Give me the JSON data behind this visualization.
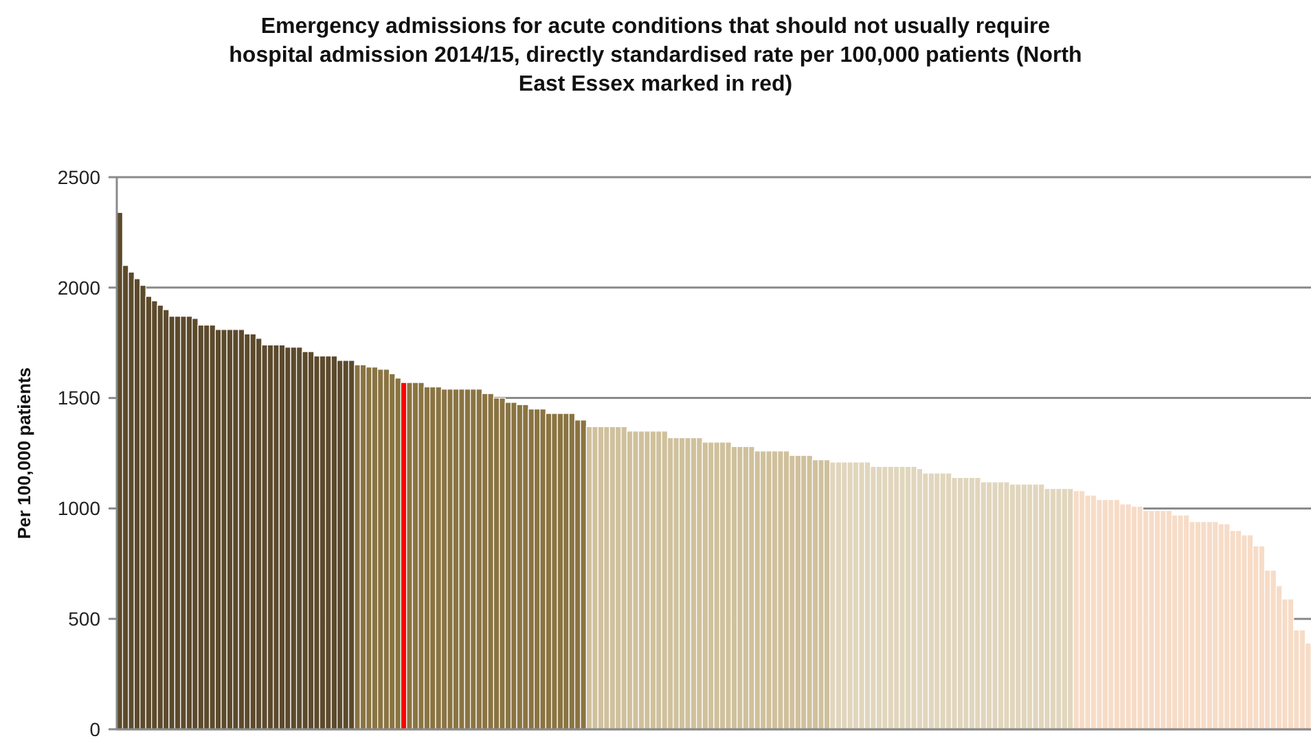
{
  "chart_data": {
    "type": "bar",
    "title": "Emergency admissions  for acute conditions that should not usually require\nhospital admission  2014/15,  directly  standardised  rate per 100,000  patients (North\nEast Essex  marked  in red)",
    "ylabel": "Per 100,000 patients",
    "categories": [
      null,
      null,
      null,
      null,
      null,
      null,
      null,
      null,
      null,
      null,
      null,
      null,
      null,
      null,
      null,
      null,
      null,
      null,
      null,
      null,
      null,
      null,
      null,
      null,
      null,
      null,
      null,
      null,
      null,
      null,
      null,
      null,
      null,
      null,
      null,
      null,
      null,
      null,
      null,
      null,
      null,
      null,
      null,
      null,
      null,
      null,
      null,
      null,
      null,
      null,
      null,
      null,
      null,
      null,
      null,
      null,
      null,
      null,
      null,
      null,
      null,
      null,
      null,
      null,
      null,
      null,
      null,
      null,
      null,
      null,
      null,
      null,
      null,
      null,
      null,
      null,
      null,
      null,
      null,
      null,
      null,
      null,
      null,
      null,
      null,
      null,
      null,
      null,
      null,
      null,
      null,
      null,
      null,
      null,
      null,
      null,
      null,
      null,
      null,
      null,
      null,
      null,
      null,
      null,
      null,
      null,
      null,
      null,
      null,
      null,
      null,
      null,
      null,
      null,
      null,
      null,
      null,
      null,
      null,
      null,
      null,
      null,
      null,
      null,
      null,
      null,
      null,
      null,
      null,
      null,
      null,
      null,
      null,
      null,
      null,
      null,
      null,
      null,
      null,
      null,
      null,
      null,
      null,
      null,
      null,
      null,
      null,
      null,
      null,
      null,
      null,
      null,
      null,
      null,
      null,
      null,
      null,
      null,
      null,
      null,
      null,
      null,
      null,
      null,
      null,
      null,
      null,
      null,
      null,
      null,
      null,
      null,
      null,
      null,
      null,
      null,
      null,
      null,
      null,
      null,
      null,
      null,
      null,
      null,
      null,
      null,
      null,
      null,
      null,
      null,
      null,
      null,
      null,
      null,
      null,
      null,
      null,
      null,
      null,
      null,
      null,
      null,
      null,
      null,
      null,
      null
    ],
    "values": [
      2340,
      2100,
      2070,
      2040,
      2010,
      1960,
      1940,
      1920,
      1900,
      1870,
      1870,
      1870,
      1870,
      1860,
      1830,
      1830,
      1830,
      1810,
      1810,
      1810,
      1810,
      1810,
      1790,
      1790,
      1770,
      1740,
      1740,
      1740,
      1740,
      1730,
      1730,
      1730,
      1710,
      1710,
      1690,
      1690,
      1690,
      1690,
      1670,
      1670,
      1670,
      1650,
      1650,
      1640,
      1640,
      1630,
      1630,
      1610,
      1590,
      1570,
      1570,
      1570,
      1570,
      1550,
      1550,
      1550,
      1540,
      1540,
      1540,
      1540,
      1540,
      1540,
      1540,
      1520,
      1520,
      1500,
      1500,
      1480,
      1480,
      1470,
      1470,
      1450,
      1450,
      1450,
      1430,
      1430,
      1430,
      1430,
      1430,
      1400,
      1400,
      1370,
      1370,
      1370,
      1370,
      1370,
      1370,
      1370,
      1350,
      1350,
      1350,
      1350,
      1350,
      1350,
      1350,
      1320,
      1320,
      1320,
      1320,
      1320,
      1320,
      1300,
      1300,
      1300,
      1300,
      1300,
      1280,
      1280,
      1280,
      1280,
      1260,
      1260,
      1260,
      1260,
      1260,
      1260,
      1240,
      1240,
      1240,
      1240,
      1220,
      1220,
      1220,
      1210,
      1210,
      1210,
      1210,
      1210,
      1210,
      1210,
      1190,
      1190,
      1190,
      1190,
      1190,
      1190,
      1190,
      1190,
      1180,
      1160,
      1160,
      1160,
      1160,
      1160,
      1140,
      1140,
      1140,
      1140,
      1140,
      1120,
      1120,
      1120,
      1120,
      1120,
      1110,
      1110,
      1110,
      1110,
      1110,
      1110,
      1090,
      1090,
      1090,
      1090,
      1090,
      1080,
      1080,
      1060,
      1060,
      1040,
      1040,
      1040,
      1040,
      1020,
      1020,
      1010,
      1010,
      990,
      990,
      990,
      990,
      990,
      970,
      970,
      970,
      940,
      940,
      940,
      940,
      940,
      930,
      930,
      900,
      900,
      880,
      880,
      830,
      830,
      720,
      720,
      650,
      590,
      590,
      450,
      450,
      390
    ],
    "colors": [
      "#5c4a2c",
      "#5c4a2c",
      "#5c4a2c",
      "#5c4a2c",
      "#5c4a2c",
      "#5c4a2c",
      "#5c4a2c",
      "#5c4a2c",
      "#5c4a2c",
      "#5c4a2c",
      "#5c4a2c",
      "#5c4a2c",
      "#5c4a2c",
      "#5c4a2c",
      "#5c4a2c",
      "#5c4a2c",
      "#5c4a2c",
      "#5c4a2c",
      "#5c4a2c",
      "#5c4a2c",
      "#5c4a2c",
      "#5c4a2c",
      "#5c4a2c",
      "#5c4a2c",
      "#5c4a2c",
      "#5c4a2c",
      "#5c4a2c",
      "#5c4a2c",
      "#5c4a2c",
      "#5c4a2c",
      "#5c4a2c",
      "#5c4a2c",
      "#5c4a2c",
      "#5c4a2c",
      "#5c4a2c",
      "#5c4a2c",
      "#5c4a2c",
      "#5c4a2c",
      "#5c4a2c",
      "#5c4a2c",
      "#5c4a2c",
      "#8a7442",
      "#8a7442",
      "#8a7442",
      "#8a7442",
      "#8a7442",
      "#8a7442",
      "#8a7442",
      "#8a7442",
      "#ff0000",
      "#8a7442",
      "#8a7442",
      "#8a7442",
      "#8a7442",
      "#8a7442",
      "#8a7442",
      "#8a7442",
      "#8a7442",
      "#8a7442",
      "#8a7442",
      "#8a7442",
      "#8a7442",
      "#8a7442",
      "#8a7442",
      "#8a7442",
      "#8a7442",
      "#8a7442",
      "#8a7442",
      "#8a7442",
      "#8a7442",
      "#8a7442",
      "#8a7442",
      "#8a7442",
      "#8a7442",
      "#8a7442",
      "#8a7442",
      "#8a7442",
      "#8a7442",
      "#8a7442",
      "#8a7442",
      "#8a7442",
      "#d0c19d",
      "#d0c19d",
      "#d0c19d",
      "#d0c19d",
      "#d0c19d",
      "#d0c19d",
      "#d0c19d",
      "#d0c19d",
      "#d0c19d",
      "#d0c19d",
      "#d0c19d",
      "#d0c19d",
      "#d0c19d",
      "#d0c19d",
      "#d0c19d",
      "#d0c19d",
      "#d0c19d",
      "#d0c19d",
      "#d0c19d",
      "#d0c19d",
      "#d0c19d",
      "#d0c19d",
      "#d0c19d",
      "#d0c19d",
      "#d0c19d",
      "#d0c19d",
      "#d0c19d",
      "#d0c19d",
      "#d0c19d",
      "#d0c19d",
      "#d0c19d",
      "#d0c19d",
      "#d0c19d",
      "#d0c19d",
      "#d0c19d",
      "#d0c19d",
      "#d0c19d",
      "#d0c19d",
      "#d0c19d",
      "#d0c19d",
      "#d0c19d",
      "#d0c19d",
      "#e1d6bd",
      "#e1d6bd",
      "#e1d6bd",
      "#e1d6bd",
      "#e1d6bd",
      "#e1d6bd",
      "#e1d6bd",
      "#e1d6bd",
      "#e1d6bd",
      "#e1d6bd",
      "#e1d6bd",
      "#e1d6bd",
      "#e1d6bd",
      "#e1d6bd",
      "#e1d6bd",
      "#e1d6bd",
      "#e1d6bd",
      "#e1d6bd",
      "#e1d6bd",
      "#e1d6bd",
      "#e1d6bd",
      "#e1d6bd",
      "#e1d6bd",
      "#e1d6bd",
      "#e1d6bd",
      "#e1d6bd",
      "#e1d6bd",
      "#e1d6bd",
      "#e1d6bd",
      "#e1d6bd",
      "#e1d6bd",
      "#e1d6bd",
      "#e1d6bd",
      "#e1d6bd",
      "#e1d6bd",
      "#e1d6bd",
      "#e1d6bd",
      "#e1d6bd",
      "#e1d6bd",
      "#e1d6bd",
      "#e1d6bd",
      "#e1d6bd",
      "#f7dcc7",
      "#f7dcc7",
      "#f7dcc7",
      "#f7dcc7",
      "#f7dcc7",
      "#f7dcc7",
      "#f7dcc7",
      "#f7dcc7",
      "#f7dcc7",
      "#f7dcc7",
      "#f7dcc7",
      "#f7dcc7",
      "#f7dcc7",
      "#f7dcc7",
      "#f7dcc7",
      "#f7dcc7",
      "#f7dcc7",
      "#f7dcc7",
      "#f7dcc7",
      "#f7dcc7",
      "#f7dcc7",
      "#f7dcc7",
      "#f7dcc7",
      "#f7dcc7",
      "#f7dcc7",
      "#f7dcc7",
      "#f7dcc7",
      "#f7dcc7",
      "#f7dcc7",
      "#f7dcc7",
      "#f7dcc7",
      "#f7dcc7",
      "#f7dcc7",
      "#f7dcc7",
      "#f7dcc7",
      "#f7dcc7",
      "#f7dcc7",
      "#f7dcc7",
      "#f7dcc7",
      "#f7dcc7",
      "#f7dcc7"
    ],
    "ylim": [
      0,
      2500
    ],
    "yticks": [
      0,
      500,
      1000,
      1500,
      2000,
      2500
    ],
    "grid": "y"
  }
}
